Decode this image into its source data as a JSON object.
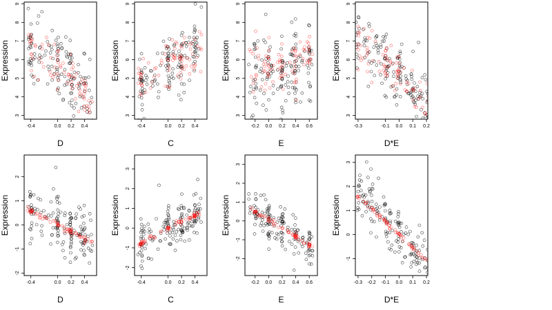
{
  "chart_data": [
    {
      "type": "scatter",
      "panel": "top-1",
      "xlabel": "D",
      "ylabel": "Expression",
      "xlim": [
        -0.5,
        0.58
      ],
      "ylim": [
        2.8,
        9.1
      ],
      "xticks": [
        -0.4,
        0.0,
        0.2,
        0.4
      ],
      "xtick_labels": [
        "-0.4",
        "0.0",
        "0.2",
        "0.4"
      ],
      "yticks": [
        3,
        4,
        5,
        6,
        7,
        8,
        9
      ],
      "ytick_labels": [
        "3",
        "4",
        "5",
        "6",
        "7",
        "8",
        "9"
      ],
      "series": [
        {
          "color": "#000000",
          "trend": [
            [
              -0.45,
              6.6
            ],
            [
              0.0,
              5.7
            ],
            [
              0.52,
              4.2
            ]
          ],
          "spread": 0.9,
          "count": 140
        },
        {
          "color": "#ff0000",
          "trend": [
            [
              -0.45,
              6.7
            ],
            [
              0.0,
              5.6
            ],
            [
              0.52,
              3.6
            ]
          ],
          "spread": 0.6,
          "count": 80
        }
      ],
      "grid": false
    },
    {
      "type": "scatter",
      "panel": "top-2",
      "xlabel": "C",
      "ylabel": "Expression",
      "xlim": [
        -0.5,
        0.58
      ],
      "ylim": [
        2.8,
        9.1
      ],
      "xticks": [
        -0.4,
        0.0,
        0.2,
        0.4
      ],
      "xtick_labels": [
        "-0.4",
        "0.0",
        "0.2",
        "0.4"
      ],
      "yticks": [
        3,
        4,
        5,
        6,
        7,
        8,
        9
      ],
      "ytick_labels": [
        "3",
        "4",
        "5",
        "6",
        "7",
        "8",
        "9"
      ],
      "series": [
        {
          "color": "#000000",
          "trend": [
            [
              -0.45,
              4.6
            ],
            [
              0.0,
              5.6
            ],
            [
              0.5,
              6.5
            ]
          ],
          "spread": 0.9,
          "count": 140
        },
        {
          "color": "#ff0000",
          "trend": [
            [
              -0.45,
              4.6
            ],
            [
              0.0,
              5.7
            ],
            [
              0.5,
              6.4
            ]
          ],
          "spread": 0.6,
          "count": 80
        }
      ],
      "grid": false
    },
    {
      "type": "scatter",
      "panel": "top-3",
      "xlabel": "E",
      "ylabel": "Expression",
      "xlim": [
        -0.35,
        0.72
      ],
      "ylim": [
        2.8,
        9.1
      ],
      "xticks": [
        -0.2,
        0.0,
        0.2,
        0.4,
        0.6
      ],
      "xtick_labels": [
        "-0.2",
        "0.0",
        "0.2",
        "0.4",
        "0.6"
      ],
      "yticks": [
        3,
        4,
        5,
        6,
        7,
        8,
        9
      ],
      "ytick_labels": [
        "3",
        "4",
        "5",
        "6",
        "7",
        "8",
        "9"
      ],
      "series": [
        {
          "color": "#000000",
          "trend": [
            [
              -0.3,
              5.8
            ],
            [
              0.0,
              5.3
            ],
            [
              0.65,
              5.8
            ]
          ],
          "spread": 1.1,
          "count": 150
        },
        {
          "color": "#ff0000",
          "trend": [
            [
              -0.3,
              5.8
            ],
            [
              0.0,
              5.2
            ],
            [
              0.65,
              6.4
            ]
          ],
          "spread": 0.7,
          "count": 90
        }
      ],
      "grid": false
    },
    {
      "type": "scatter",
      "panel": "top-4",
      "xlabel": "D*E",
      "ylabel": "Expression",
      "xlim": [
        -0.32,
        0.21
      ],
      "ylim": [
        2.8,
        9.1
      ],
      "xticks": [
        -0.3,
        -0.1,
        0.0,
        0.1,
        0.2
      ],
      "xtick_labels": [
        "-0.3",
        "-0.1",
        "0.0",
        "0.1",
        "0.2"
      ],
      "yticks": [
        3,
        4,
        5,
        6,
        7,
        8,
        9
      ],
      "ytick_labels": [
        "3",
        "4",
        "5",
        "6",
        "7",
        "8",
        "9"
      ],
      "series": [
        {
          "color": "#000000",
          "trend": [
            [
              -0.28,
              7.0
            ],
            [
              0.0,
              5.3
            ],
            [
              0.18,
              4.0
            ]
          ],
          "spread": 0.9,
          "count": 150
        },
        {
          "color": "#ff0000",
          "trend": [
            [
              -0.28,
              6.8
            ],
            [
              0.0,
              5.2
            ],
            [
              0.18,
              3.6
            ]
          ],
          "spread": 0.6,
          "count": 90
        }
      ],
      "grid": false
    },
    {
      "type": "scatter",
      "panel": "bottom-1",
      "xlabel": "D",
      "ylabel": "Expression",
      "xlim": [
        -0.5,
        0.58
      ],
      "ylim": [
        -2.1,
        2.9
      ],
      "xticks": [
        -0.4,
        0.0,
        0.2,
        0.4
      ],
      "xtick_labels": [
        "-0.4",
        "0.0",
        "0.2",
        "0.4"
      ],
      "yticks": [
        -2,
        -1,
        0,
        1,
        2
      ],
      "ytick_labels": [
        "-2",
        "-1",
        "0",
        "1",
        "2"
      ],
      "series": [
        {
          "color": "#000000",
          "trend": [
            [
              -0.45,
              0.6
            ],
            [
              0.0,
              0.0
            ],
            [
              0.52,
              -0.6
            ]
          ],
          "spread": 0.6,
          "count": 150
        },
        {
          "color": "#ff0000",
          "trend": [
            [
              -0.45,
              0.65
            ],
            [
              0.0,
              0.0
            ],
            [
              0.52,
              -0.75
            ]
          ],
          "spread": 0.06,
          "count": 70
        }
      ],
      "grid": false
    },
    {
      "type": "scatter",
      "panel": "bottom-2",
      "xlabel": "C",
      "ylabel": "Expression",
      "xlim": [
        -0.5,
        0.58
      ],
      "ylim": [
        -2.4,
        3.7
      ],
      "xticks": [
        -0.4,
        0.0,
        0.2,
        0.4
      ],
      "xtick_labels": [
        "-0.4",
        "0.0",
        "0.2",
        "0.4"
      ],
      "yticks": [
        -2,
        -1,
        0,
        1,
        2,
        3
      ],
      "ytick_labels": [
        "-2",
        "-1",
        "0",
        "1",
        "2",
        "3"
      ],
      "series": [
        {
          "color": "#000000",
          "trend": [
            [
              -0.45,
              -0.8
            ],
            [
              0.0,
              0.0
            ],
            [
              0.5,
              0.8
            ]
          ],
          "spread": 0.6,
          "count": 150
        },
        {
          "color": "#ff0000",
          "trend": [
            [
              -0.45,
              -0.85
            ],
            [
              0.0,
              0.0
            ],
            [
              0.5,
              0.8
            ]
          ],
          "spread": 0.06,
          "count": 70
        }
      ],
      "grid": false
    },
    {
      "type": "scatter",
      "panel": "bottom-3",
      "xlabel": "E",
      "ylabel": "Expression",
      "xlim": [
        -0.35,
        0.72
      ],
      "ylim": [
        -2.9,
        3.5
      ],
      "xticks": [
        -0.2,
        0.0,
        0.2,
        0.4,
        0.6
      ],
      "xtick_labels": [
        "-0.2",
        "0.0",
        "0.2",
        "0.4",
        "0.6"
      ],
      "yticks": [
        -2,
        -1,
        0,
        1,
        2,
        3
      ],
      "ytick_labels": [
        "-2",
        "-1",
        "0",
        "1",
        "2",
        "3"
      ],
      "series": [
        {
          "color": "#000000",
          "trend": [
            [
              -0.3,
              0.7
            ],
            [
              0.0,
              0.0
            ],
            [
              0.65,
              -1.4
            ]
          ],
          "spread": 0.6,
          "count": 150
        },
        {
          "color": "#ff0000",
          "trend": [
            [
              -0.3,
              0.7
            ],
            [
              0.0,
              0.05
            ],
            [
              0.65,
              -1.4
            ]
          ],
          "spread": 0.06,
          "count": 70
        }
      ],
      "grid": false
    },
    {
      "type": "scatter",
      "panel": "bottom-4",
      "xlabel": "D*E",
      "ylabel": "Expression",
      "xlim": [
        -0.32,
        0.21
      ],
      "ylim": [
        -1.7,
        3.3
      ],
      "xticks": [
        -0.3,
        -0.2,
        -0.1,
        0.0,
        0.1,
        0.2
      ],
      "xtick_labels": [
        "-0.3",
        "-0.2",
        "-0.1",
        "0.0",
        "0.1",
        "0.2"
      ],
      "yticks": [
        -1,
        0,
        1,
        2,
        3
      ],
      "ytick_labels": [
        "-1",
        "0",
        "1",
        "2",
        "3"
      ],
      "series": [
        {
          "color": "#000000",
          "trend": [
            [
              -0.28,
              1.8
            ],
            [
              0.0,
              0.0
            ],
            [
              0.18,
              -1.0
            ]
          ],
          "spread": 0.5,
          "count": 150
        },
        {
          "color": "#ff0000",
          "trend": [
            [
              -0.28,
              1.5
            ],
            [
              0.0,
              0.0
            ],
            [
              0.18,
              -1.0
            ]
          ],
          "spread": 0.05,
          "count": 70
        }
      ],
      "grid": false
    }
  ]
}
